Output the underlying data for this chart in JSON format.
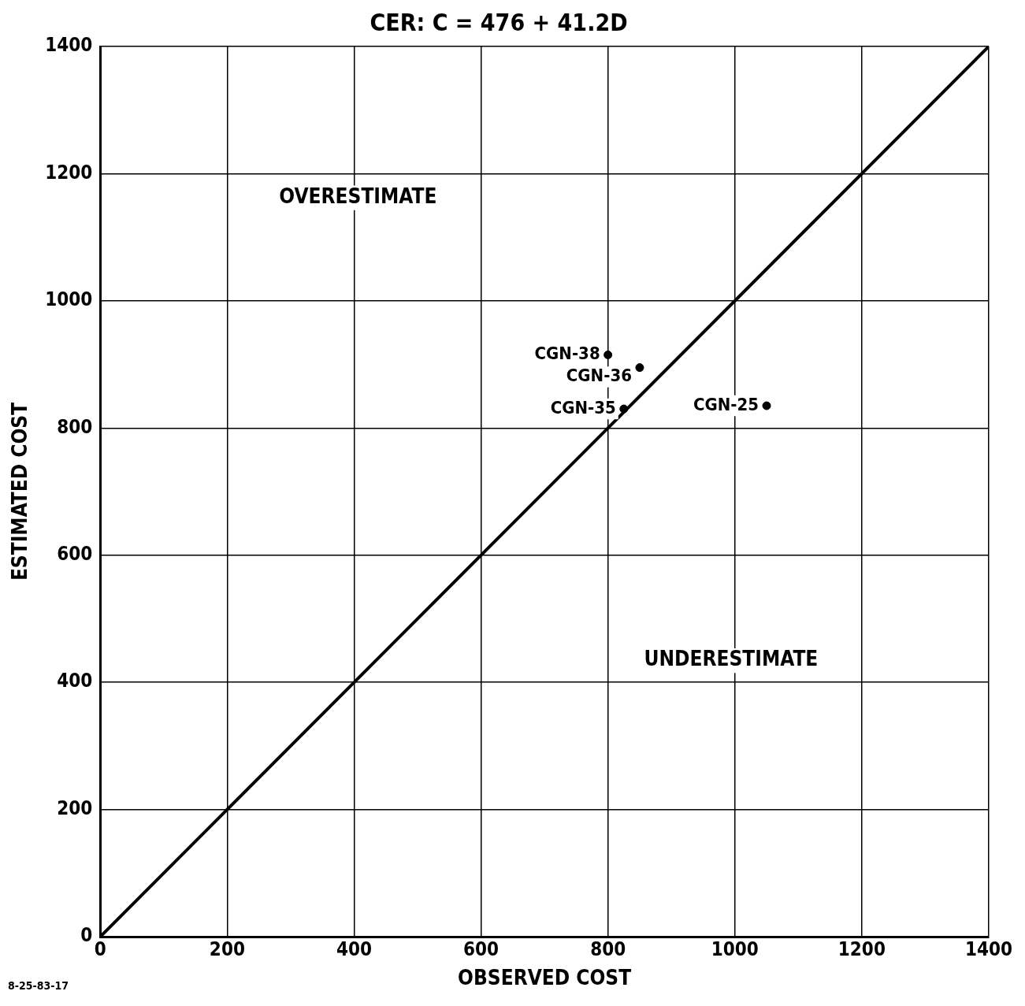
{
  "chart_data": {
    "type": "scatter",
    "title": "CER: C = 476 + 41.2D",
    "xlabel": "OBSERVED COST",
    "ylabel": "ESTIMATED COST",
    "series": [
      {
        "type": "line",
        "color": "#000000",
        "x": [
          0,
          1400
        ],
        "values": [
          0,
          1400
        ],
        "marker": "none"
      },
      {
        "type": "scatter",
        "color": "#000000",
        "x": [
          800,
          850,
          825,
          1050
        ],
        "values": [
          915,
          895,
          830,
          835
        ],
        "marker": "circle"
      }
    ],
    "xlim": [
      0,
      1400
    ],
    "ylim": [
      0,
      1400
    ],
    "xticks": [
      0,
      200,
      400,
      600,
      800,
      1000,
      1200,
      1400
    ],
    "yticks": [
      0,
      200,
      400,
      600,
      800,
      1000,
      1200,
      1400
    ],
    "grid": true,
    "legend": false,
    "annotations": [
      {
        "text": "CGN-38",
        "x": 800,
        "y": 915
      },
      {
        "text": "CGN-36",
        "x": 850,
        "y": 895
      },
      {
        "text": "CGN-35",
        "x": 825,
        "y": 830
      },
      {
        "text": "CGN-25",
        "x": 1050,
        "y": 835
      },
      "OVERESTIMATE",
      "UNDERESTIMATE",
      "8-25-83-17"
    ]
  }
}
